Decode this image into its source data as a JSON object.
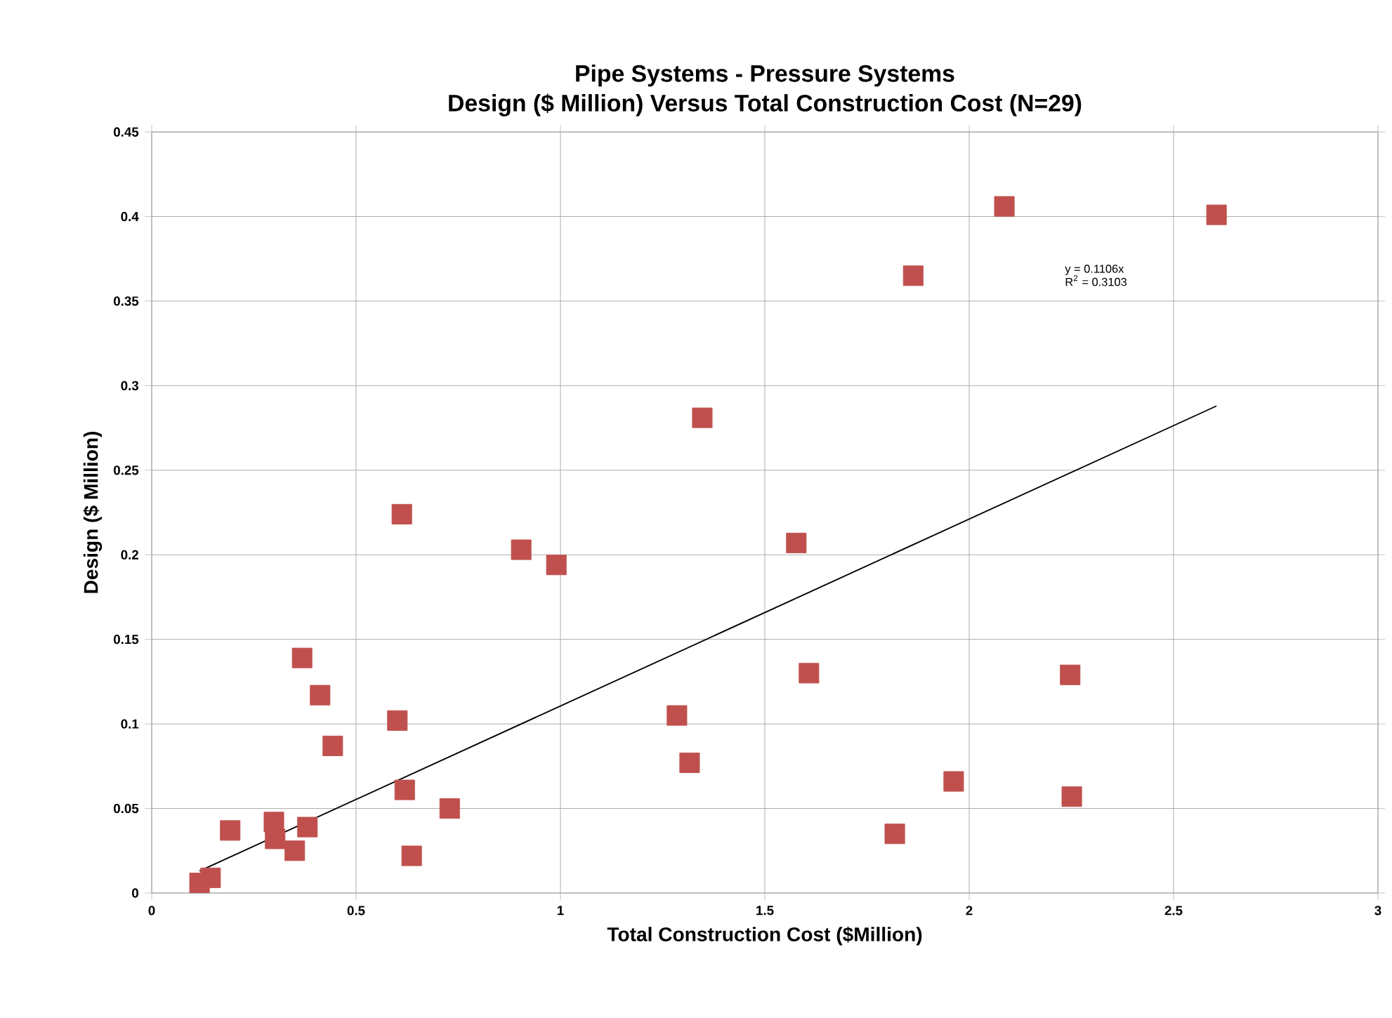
{
  "chart_data": {
    "type": "scatter",
    "title": "Pipe Systems - Pressure Systems",
    "subtitle": "Design  ($ Million) Versus Total Construction Cost  (N=29)",
    "xlabel": "Total Construction Cost ($Million)",
    "ylabel": "Design ($ Million)",
    "xlim": [
      0,
      3
    ],
    "xticks": [
      0,
      0.5,
      1,
      1.5,
      2,
      2.5,
      3
    ],
    "ylim": [
      0,
      0.45
    ],
    "yticks": [
      0,
      0.05,
      0.1,
      0.15,
      0.2,
      0.25,
      0.3,
      0.35,
      0.4,
      0.45
    ],
    "grid": true,
    "marker": "square",
    "series": [
      {
        "type": "scatter",
        "color": "#c0504d",
        "x": [
          0.117,
          0.144,
          0.192,
          0.299,
          0.302,
          0.35,
          0.381,
          0.368,
          0.412,
          0.443,
          0.601,
          0.612,
          0.619,
          0.636,
          0.729,
          0.904,
          0.99,
          1.285,
          1.316,
          1.347,
          1.577,
          1.608,
          1.818,
          1.863,
          1.962,
          2.086,
          2.247,
          2.251,
          2.605
        ],
        "values": [
          0.006,
          0.009,
          0.037,
          0.042,
          0.032,
          0.025,
          0.039,
          0.139,
          0.117,
          0.087,
          0.102,
          0.224,
          0.061,
          0.022,
          0.05,
          0.203,
          0.194,
          0.105,
          0.077,
          0.281,
          0.207,
          0.13,
          0.035,
          0.365,
          0.066,
          0.406,
          0.129,
          0.057,
          0.401
        ]
      },
      {
        "type": "line",
        "color": "#000000",
        "marker": "none",
        "x": [
          0.117,
          2.605
        ],
        "values": [
          0.013,
          0.288
        ]
      }
    ],
    "annotations": [
      "y = 0.1106x",
      "R$^{2}$ = 0.3103"
    ]
  }
}
